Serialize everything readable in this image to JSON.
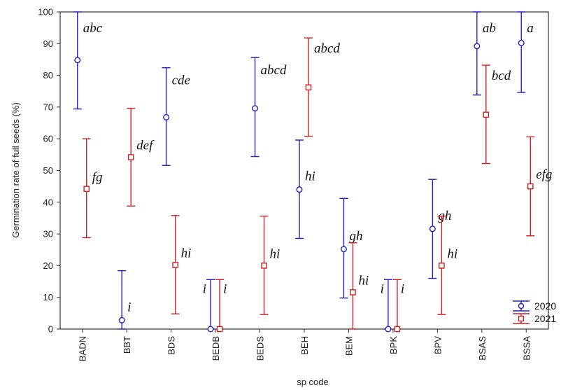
{
  "chart_data": {
    "type": "scatter",
    "subtype": "mean-with-error-bars",
    "title": "",
    "xlabel": "sp code",
    "ylabel": "Germination rate of full seeds (%)",
    "ylim": [
      0,
      100
    ],
    "yticks": [
      0,
      10,
      20,
      30,
      40,
      50,
      60,
      70,
      80,
      90,
      100
    ],
    "grid": false,
    "legend_position": "bottom-right",
    "categories": [
      "BADN",
      "BBT",
      "BDS",
      "BEDB",
      "BEDS",
      "BEH",
      "BEM",
      "BPK",
      "BPV",
      "BSAS",
      "BSSA"
    ],
    "series": [
      {
        "name": "2020",
        "color": "#2222cc",
        "marker": "circle",
        "values": [
          84.8,
          2.8,
          66.8,
          0,
          69.6,
          44.0,
          25.2,
          0,
          31.6,
          89.2,
          90.2
        ],
        "err_low": [
          69.4,
          0,
          51.6,
          0,
          54.4,
          28.6,
          9.8,
          0,
          16.0,
          73.8,
          74.6
        ],
        "err_high": [
          100,
          18.4,
          82.4,
          15.6,
          85.6,
          59.6,
          41.2,
          15.6,
          47.2,
          100,
          100
        ],
        "letters": [
          "abc",
          "i",
          "cde",
          "i",
          "abcd",
          "hi",
          "gh",
          "i",
          "gh",
          "ab",
          "a"
        ]
      },
      {
        "name": "2021",
        "color": "#cc2222",
        "marker": "square",
        "values": [
          44.2,
          54.2,
          20.2,
          0,
          20.0,
          76.2,
          11.6,
          0,
          20.0,
          67.6,
          45.0
        ],
        "err_low": [
          28.8,
          38.8,
          4.8,
          0,
          4.6,
          60.8,
          0,
          0,
          4.6,
          52.2,
          29.4
        ],
        "err_high": [
          60.0,
          69.6,
          35.8,
          15.6,
          35.6,
          91.8,
          27.2,
          15.6,
          35.6,
          83.2,
          60.6
        ],
        "letters": [
          "fg",
          "def",
          "hi",
          "i",
          "hi",
          "abcd",
          "hi",
          "i",
          "hi",
          "bcd",
          "efg"
        ]
      }
    ]
  }
}
